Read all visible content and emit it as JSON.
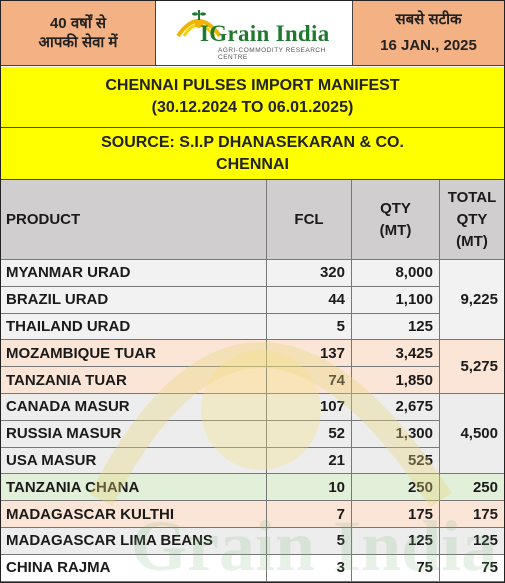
{
  "header": {
    "left_line1": "40 वर्षों से",
    "left_line2": "आपकी सेवा में",
    "brand": "IGrain India",
    "tagline": "AGRI-COMMODITY RESEARCH CENTRE",
    "right_line1": "सबसे सटीक",
    "date": "16 JAN., 2025"
  },
  "title": {
    "line1": "CHENNAI PULSES IMPORT MANIFEST",
    "line2": "(30.12.2024 TO 06.01.2025)"
  },
  "source": {
    "line1": "SOURCE: S.I.P DHANASEKARAN & CO.",
    "line2": "CHENNAI"
  },
  "table": {
    "headers": {
      "product": "PRODUCT",
      "fcl": "FCL",
      "qty_line1": "QTY",
      "qty_line2": "(MT)",
      "total_line1": "TOTAL",
      "total_line2": "QTY",
      "total_line3": "(MT)"
    },
    "rows": [
      {
        "product": "MYANMAR URAD",
        "fcl": "320",
        "qty": "8,000"
      },
      {
        "product": "BRAZIL URAD",
        "fcl": "44",
        "qty": "1,100"
      },
      {
        "product": "THAILAND URAD",
        "fcl": "5",
        "qty": "125"
      },
      {
        "product": "MOZAMBIQUE TUAR",
        "fcl": "137",
        "qty": "3,425"
      },
      {
        "product": "TANZANIA TUAR",
        "fcl": "74",
        "qty": "1,850"
      },
      {
        "product": "CANADA MASUR",
        "fcl": "107",
        "qty": "2,675"
      },
      {
        "product": "RUSSIA MASUR",
        "fcl": "52",
        "qty": "1,300"
      },
      {
        "product": "USA MASUR",
        "fcl": "21",
        "qty": "525"
      },
      {
        "product": "TANZANIA CHANA",
        "fcl": "10",
        "qty": "250"
      },
      {
        "product": "MADAGASCAR KULTHI",
        "fcl": "7",
        "qty": "175"
      },
      {
        "product": "MADAGASCAR LIMA BEANS",
        "fcl": "5",
        "qty": "125"
      },
      {
        "product": "CHINA RAJMA",
        "fcl": "3",
        "qty": "75"
      }
    ],
    "groups": [
      {
        "total": "9,225",
        "row_start": 0,
        "row_count": 3,
        "color": "#f2f2f2"
      },
      {
        "total": "5,275",
        "row_start": 3,
        "row_count": 2,
        "color": "#fbe5d6"
      },
      {
        "total": "4,500",
        "row_start": 5,
        "row_count": 3,
        "color": "#ededed"
      },
      {
        "total": "250",
        "row_start": 8,
        "row_count": 1,
        "color": "#e2efd9"
      },
      {
        "total": "175",
        "row_start": 9,
        "row_count": 1,
        "color": "#fbe5d6"
      },
      {
        "total": "125",
        "row_start": 10,
        "row_count": 1,
        "color": "#ededed"
      },
      {
        "total": "75",
        "row_start": 11,
        "row_count": 1,
        "color": "#ffffff"
      }
    ]
  },
  "colors": {
    "header_orange": "#f4b183",
    "title_yellow": "#ffff00",
    "header_grey": "#d0cece",
    "brand_green": "#1f7a2e"
  },
  "icons": {
    "logo": "grain-sun-emblem"
  }
}
